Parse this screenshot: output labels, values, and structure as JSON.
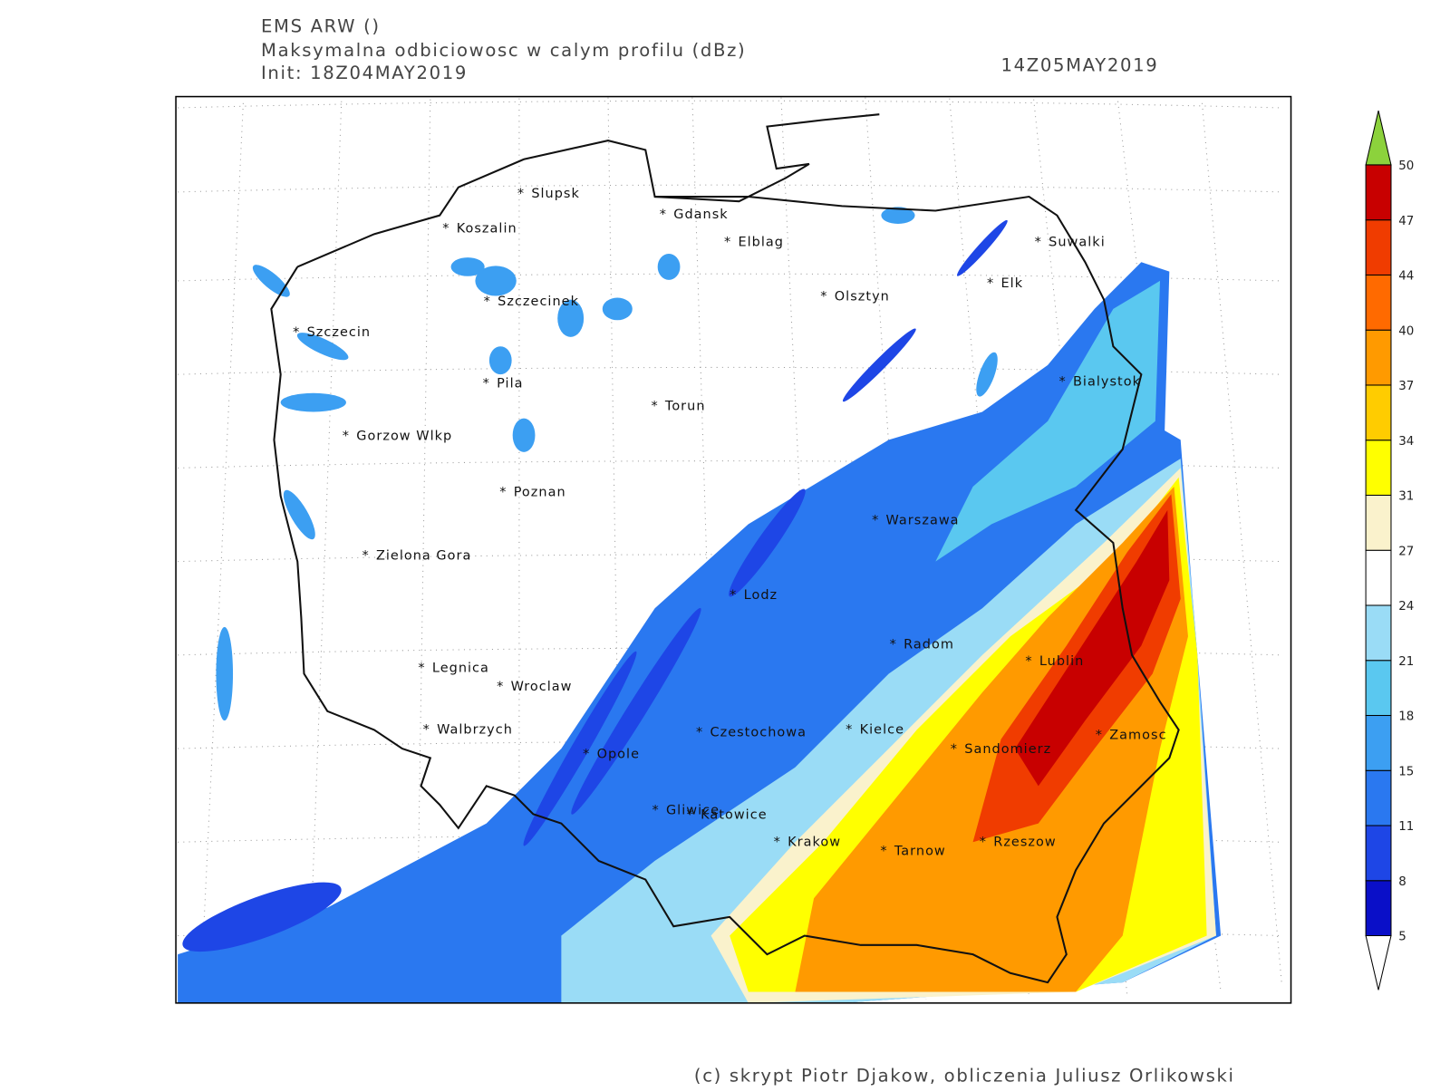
{
  "header": {
    "model": "EMS ARW ()",
    "variable": "Maksymalna odbiciowosc w calym profilu (dBz)",
    "init": "Init: 18Z04MAY2019",
    "valid": "14Z05MAY2019"
  },
  "cities": [
    "Slupsk",
    "Koszalin",
    "Gdansk",
    "Elblag",
    "Suwalki",
    "Elk",
    "Olsztyn",
    "Szczecinek",
    "Szczecin",
    "Pila",
    "Bialystok",
    "Torun",
    "Gorzow Wlkp",
    "Poznan",
    "Warszawa",
    "Zielona Gora",
    "Lodz",
    "Radom",
    "Lublin",
    "Legnica",
    "Wroclaw",
    "Walbrzych",
    "Czestochowa",
    "Kielce",
    "Zamosc",
    "Sandomierz",
    "Opole",
    "Gliwice",
    "Katowice",
    "Krakow",
    "Tarnow",
    "Rzeszow"
  ],
  "colorbar": {
    "levels": [
      5,
      8,
      11,
      15,
      18,
      21,
      24,
      27,
      31,
      34,
      37,
      40,
      44,
      47,
      50
    ],
    "colors": [
      "#0a0fc8",
      "#1e46e6",
      "#2a78f0",
      "#3c9ff2",
      "#5ac8f0",
      "#9adcf6",
      "#ffffff",
      "#faf2cc",
      "#ffff00",
      "#ffcc00",
      "#ff9a00",
      "#ff6a00",
      "#f03c00",
      "#c80000"
    ],
    "above_color": "#8cd23c",
    "below_color": "#ffffff"
  },
  "footer": "(c) skrypt Piotr Djakow, obliczenia Juliusz Orlikowski"
}
